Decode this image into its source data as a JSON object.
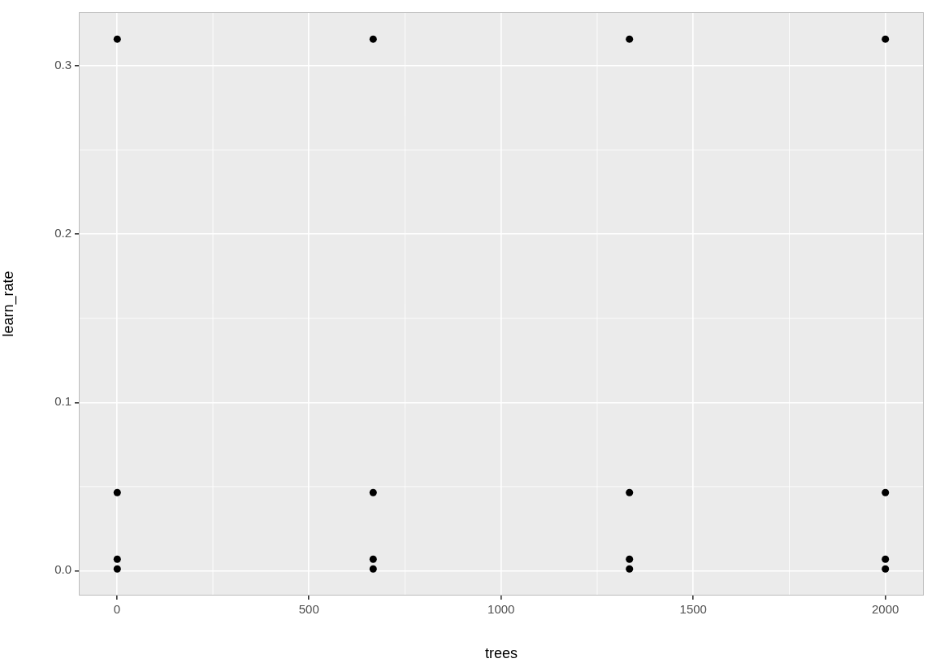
{
  "chart_data": {
    "type": "scatter",
    "x_label": "trees",
    "y_label": "learn_rate",
    "x": [
      1,
      1,
      1,
      1,
      667,
      667,
      667,
      667,
      1334,
      1334,
      1334,
      1334,
      2000,
      2000,
      2000,
      2000
    ],
    "values": [
      0.001,
      0.00681,
      0.0464,
      0.316,
      0.001,
      0.00681,
      0.0464,
      0.316,
      0.001,
      0.00681,
      0.0464,
      0.316,
      0.001,
      0.00681,
      0.0464,
      0.316
    ],
    "color": "#000000",
    "marker": "circle",
    "xlim": [
      -99,
      2100
    ],
    "xticks": [
      0,
      500,
      1000,
      1500,
      2000
    ],
    "ylim": [
      -0.0148,
      0.332
    ],
    "yticks": [
      {
        "value": 0,
        "label": "0.0"
      },
      {
        "value": 0.1,
        "label": "0.1"
      },
      {
        "value": 0.2,
        "label": "0.2"
      },
      {
        "value": 0.3,
        "label": "0.3"
      }
    ],
    "grid": true
  }
}
